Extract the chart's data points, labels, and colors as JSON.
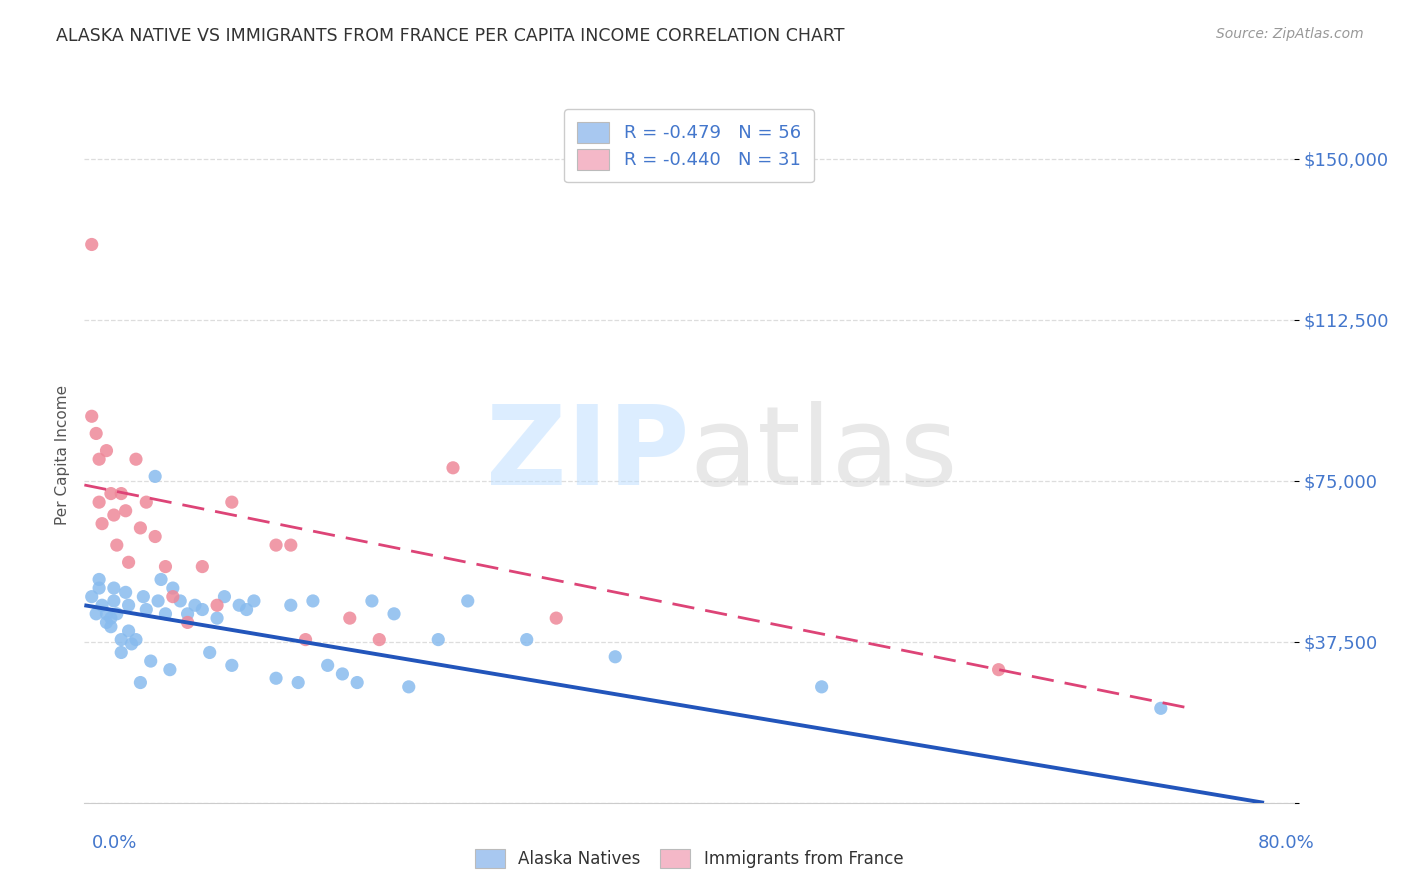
{
  "title": "ALASKA NATIVE VS IMMIGRANTS FROM FRANCE PER CAPITA INCOME CORRELATION CHART",
  "source": "Source: ZipAtlas.com",
  "ylabel": "Per Capita Income",
  "yticks": [
    0,
    37500,
    75000,
    112500,
    150000
  ],
  "ytick_labels": [
    "",
    "$37,500",
    "$75,000",
    "$112,500",
    "$150,000"
  ],
  "xlim": [
    0.0,
    0.82
  ],
  "ylim": [
    0,
    162000
  ],
  "legend_entries": [
    {
      "label": "R = -0.479   N = 56",
      "facecolor": "#a8c8f0"
    },
    {
      "label": "R = -0.440   N = 31",
      "facecolor": "#f4b8c8"
    }
  ],
  "bottom_legend": [
    {
      "label": "Alaska Natives",
      "facecolor": "#a8c8f0"
    },
    {
      "label": "Immigrants from France",
      "facecolor": "#f4b8c8"
    }
  ],
  "blue_scatter_x": [
    0.005,
    0.008,
    0.01,
    0.01,
    0.012,
    0.015,
    0.015,
    0.018,
    0.018,
    0.02,
    0.02,
    0.022,
    0.025,
    0.025,
    0.028,
    0.03,
    0.03,
    0.032,
    0.035,
    0.038,
    0.04,
    0.042,
    0.045,
    0.048,
    0.05,
    0.052,
    0.055,
    0.058,
    0.06,
    0.065,
    0.07,
    0.075,
    0.08,
    0.085,
    0.09,
    0.095,
    0.1,
    0.105,
    0.11,
    0.115,
    0.13,
    0.14,
    0.145,
    0.155,
    0.165,
    0.175,
    0.185,
    0.195,
    0.21,
    0.22,
    0.24,
    0.26,
    0.3,
    0.36,
    0.5,
    0.73
  ],
  "blue_scatter_y": [
    48000,
    44000,
    52000,
    50000,
    46000,
    44000,
    42000,
    43000,
    41000,
    50000,
    47000,
    44000,
    38000,
    35000,
    49000,
    46000,
    40000,
    37000,
    38000,
    28000,
    48000,
    45000,
    33000,
    76000,
    47000,
    52000,
    44000,
    31000,
    50000,
    47000,
    44000,
    46000,
    45000,
    35000,
    43000,
    48000,
    32000,
    46000,
    45000,
    47000,
    29000,
    46000,
    28000,
    47000,
    32000,
    30000,
    28000,
    47000,
    44000,
    27000,
    38000,
    47000,
    38000,
    34000,
    27000,
    22000
  ],
  "pink_scatter_x": [
    0.005,
    0.005,
    0.008,
    0.01,
    0.01,
    0.012,
    0.015,
    0.018,
    0.02,
    0.022,
    0.025,
    0.028,
    0.03,
    0.035,
    0.038,
    0.042,
    0.048,
    0.055,
    0.06,
    0.07,
    0.08,
    0.09,
    0.1,
    0.13,
    0.14,
    0.15,
    0.18,
    0.2,
    0.25,
    0.32,
    0.62
  ],
  "pink_scatter_y": [
    130000,
    90000,
    86000,
    80000,
    70000,
    65000,
    82000,
    72000,
    67000,
    60000,
    72000,
    68000,
    56000,
    80000,
    64000,
    70000,
    62000,
    55000,
    48000,
    42000,
    55000,
    46000,
    70000,
    60000,
    60000,
    38000,
    43000,
    38000,
    78000,
    43000,
    31000
  ],
  "blue_line_x": [
    0.0,
    0.8
  ],
  "blue_line_y": [
    46000,
    0
  ],
  "pink_line_x": [
    0.0,
    0.75
  ],
  "pink_line_y": [
    74000,
    22000
  ],
  "title_color": "#333333",
  "source_color": "#999999",
  "tick_color": "#4477cc",
  "blue_scatter_color": "#88bbee",
  "pink_scatter_color": "#ee8899",
  "blue_line_color": "#2255bb",
  "pink_line_color": "#dd4477",
  "grid_color": "#dddddd",
  "background_color": "#ffffff",
  "watermark_zip_color": "#bbddff",
  "watermark_atlas_color": "#cccccc",
  "ylabel_color": "#555555"
}
